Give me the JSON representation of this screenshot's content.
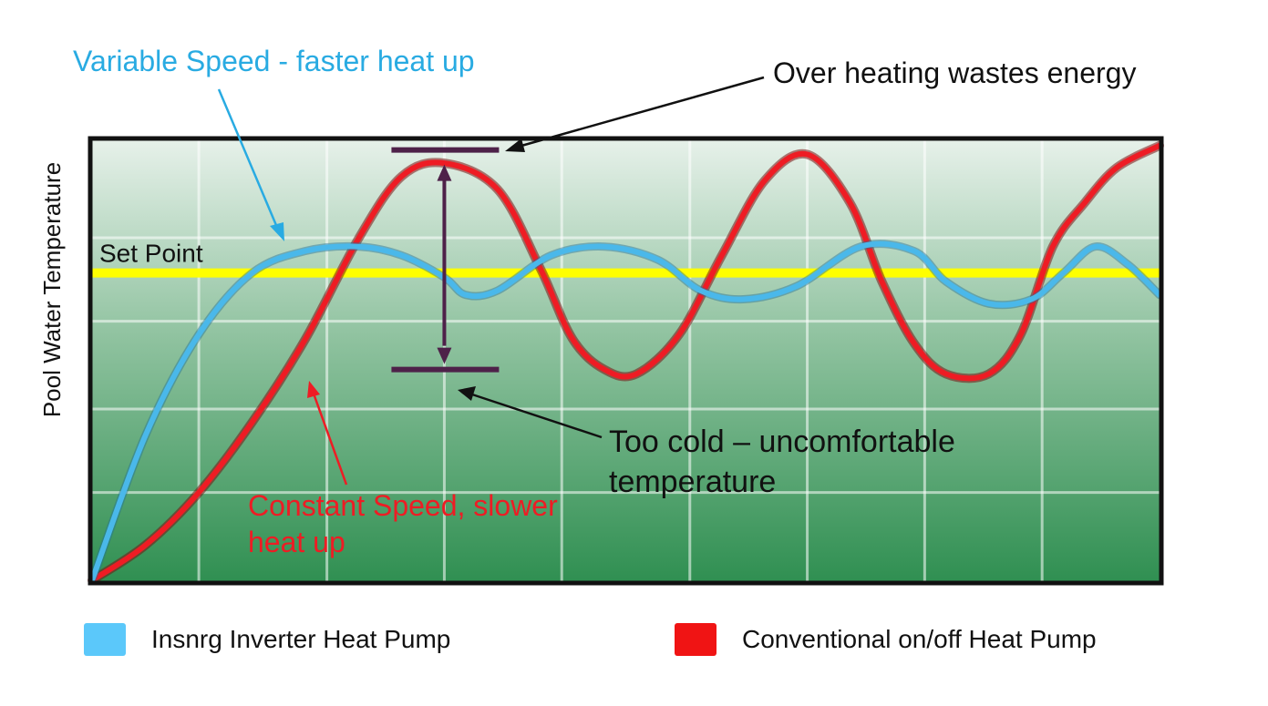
{
  "chart_data": {
    "type": "line",
    "title": "",
    "xlabel": "",
    "ylabel": "Pool Water Temperature",
    "xlim": [
      0,
      100
    ],
    "ylim": [
      0,
      100
    ],
    "grid": true,
    "set_point": {
      "label": "Set Point",
      "value": 70,
      "color": "#ffff00"
    },
    "series": [
      {
        "name": "Insnrg Inverter Heat Pump",
        "color": "#4ab8ea",
        "x": [
          0,
          5,
          10,
          15,
          20,
          25,
          29,
          33,
          35,
          38,
          43,
          48,
          53,
          57,
          61,
          66,
          72,
          77,
          80,
          84,
          88,
          91,
          94,
          97,
          100
        ],
        "y": [
          0,
          33,
          56,
          70,
          75,
          76,
          74,
          69,
          65,
          66,
          74,
          76,
          73,
          66,
          64,
          67,
          76,
          75,
          68,
          63,
          64,
          70,
          76,
          72,
          65
        ]
      },
      {
        "name": "Conventional on/off Heat Pump",
        "color": "#ee1c24",
        "x": [
          0,
          5,
          10,
          15,
          20,
          25,
          29,
          33,
          38,
          42,
          45,
          48,
          51,
          55,
          59,
          63,
          67,
          71,
          74,
          77,
          80,
          84,
          87,
          90,
          93,
          96,
          100
        ],
        "y": [
          0,
          8,
          20,
          36,
          55,
          78,
          92,
          95,
          89,
          71,
          55,
          48,
          47,
          56,
          74,
          91,
          97,
          86,
          68,
          54,
          47,
          47,
          56,
          76,
          86,
          94,
          99
        ]
      }
    ],
    "range_bracket": {
      "top_value": 98,
      "bottom_value": 48,
      "x": 33
    },
    "annotations": [
      {
        "id": "variable",
        "text": "Variable Speed - faster heat up",
        "color": "#29abe2"
      },
      {
        "id": "overheat",
        "text": "Over heating wastes energy",
        "color": "#111111"
      },
      {
        "id": "toocold",
        "lines": [
          "Too cold – uncomfortable",
          "temperature"
        ],
        "color": "#111111"
      },
      {
        "id": "constant",
        "lines": [
          "Constant Speed, slower",
          "heat up"
        ],
        "color": "#ee1c24"
      }
    ]
  },
  "legend": {
    "inverter": {
      "label": "Insnrg Inverter Heat Pump",
      "color": "#5bc8fa"
    },
    "conventional": {
      "label": "Conventional on/off Heat Pump",
      "color": "#f01414"
    }
  }
}
